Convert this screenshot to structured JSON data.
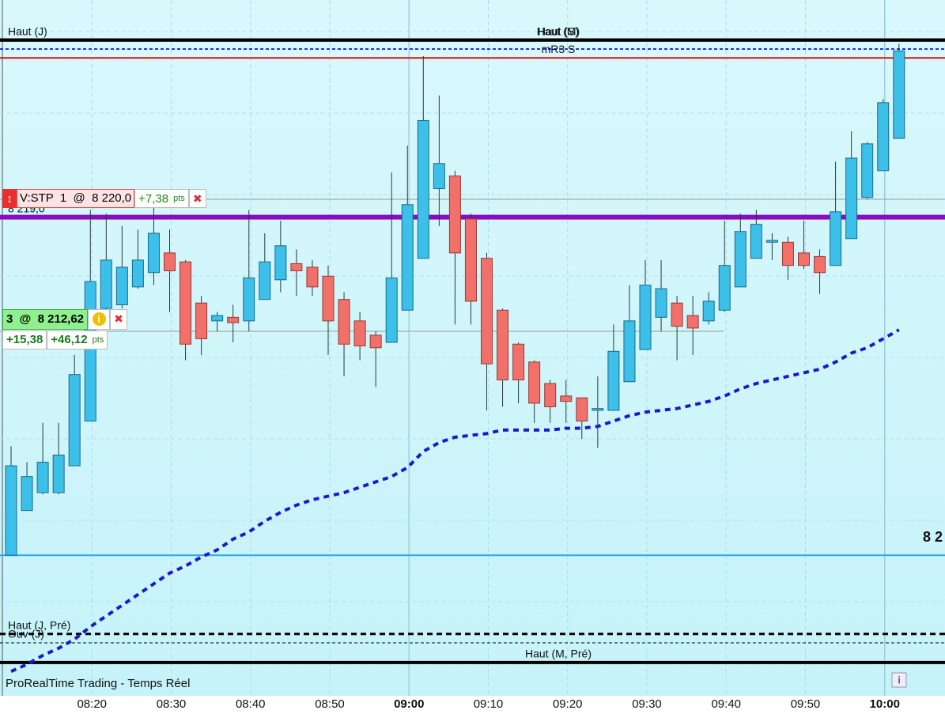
{
  "chart_data": {
    "type": "candlestick",
    "categories": [
      null,
      null,
      null,
      null,
      null,
      "08:20",
      null,
      null,
      null,
      null,
      "08:30",
      null,
      null,
      null,
      null,
      "08:40",
      null,
      null,
      null,
      null,
      "08:50",
      null,
      null,
      null,
      null,
      "09:00",
      null,
      null,
      null,
      null,
      "09:10",
      null,
      null,
      null,
      null,
      "09:20",
      null,
      null,
      null,
      null,
      "09:30",
      null,
      null,
      null,
      null,
      "09:40",
      null,
      null,
      null,
      null,
      "09:50",
      null,
      null,
      null,
      null,
      "10:00",
      null
    ],
    "open": [
      8200.1,
      8202.6,
      8203.6,
      8203.6,
      8205.1,
      8207.6,
      8213.9,
      8214.1,
      8215.1,
      8215.9,
      8217.0,
      8216.5,
      8214.2,
      8213.2,
      8213.4,
      8213.2,
      8214.4,
      8215.5,
      8216.4,
      8216.2,
      8215.7,
      8214.4,
      8213.2,
      8212.4,
      8212.0,
      8213.8,
      8216.7,
      8220.6,
      8221.3,
      8218.9,
      8216.7,
      8213.8,
      8211.9,
      8210.9,
      8209.7,
      8209.0,
      8208.9,
      8208.2,
      8208.2,
      8209.8,
      8211.6,
      8213.4,
      8214.2,
      8213.5,
      8213.2,
      8213.8,
      8215.1,
      8216.7,
      8217.6,
      8217.6,
      8217.0,
      8216.8,
      8216.3,
      8217.8,
      8220.1,
      8221.6,
      8223.4
    ],
    "high": [
      8206.2,
      8205.3,
      8207.5,
      8207.5,
      8211.3,
      8219.4,
      8219.2,
      8218.5,
      8218.3,
      8219.9,
      8218.3,
      8216.6,
      8214.6,
      8213.7,
      8214.1,
      8219.4,
      8218.1,
      8218.8,
      8217.2,
      8216.6,
      8216.3,
      8214.8,
      8213.7,
      8212.6,
      8221.5,
      8223.0,
      8228.0,
      8225.8,
      8221.6,
      8219.2,
      8217.0,
      8213.9,
      8212.0,
      8211.0,
      8209.9,
      8209.9,
      8208.9,
      8210.1,
      8213.0,
      8215.2,
      8216.6,
      8216.6,
      8214.6,
      8214.6,
      8214.8,
      8218.8,
      8219.2,
      8219.4,
      8218.1,
      8217.9,
      8218.8,
      8217.2,
      8222.1,
      8223.8,
      8223.2,
      8225.6,
      8228.7
    ],
    "low": [
      8200.1,
      8202.6,
      8203.5,
      8203.5,
      8205.1,
      8207.6,
      8213.7,
      8213.9,
      8215.0,
      8215.2,
      8213.7,
      8211.0,
      8211.3,
      8212.6,
      8212.0,
      8212.6,
      8214.4,
      8214.8,
      8214.6,
      8214.6,
      8211.3,
      8210.1,
      8211.0,
      8209.5,
      8212.0,
      8213.8,
      8216.7,
      8218.5,
      8213.0,
      8213.0,
      8208.2,
      8208.4,
      8208.6,
      8207.5,
      8207.5,
      8207.5,
      8206.6,
      8206.1,
      8208.2,
      8209.8,
      8211.6,
      8212.6,
      8211.0,
      8211.3,
      8213.0,
      8213.7,
      8215.1,
      8216.7,
      8216.6,
      8215.5,
      8216.1,
      8214.7,
      8216.3,
      8217.8,
      8220.0,
      8221.6,
      8223.4
    ],
    "close": [
      8205.1,
      8204.5,
      8205.3,
      8205.7,
      8210.2,
      8215.4,
      8216.6,
      8216.2,
      8216.6,
      8218.1,
      8216.0,
      8211.9,
      8212.2,
      8213.5,
      8213.1,
      8215.6,
      8216.5,
      8217.4,
      8216.0,
      8215.1,
      8213.2,
      8211.9,
      8211.8,
      8211.7,
      8215.6,
      8219.7,
      8224.4,
      8222.0,
      8217.0,
      8214.3,
      8210.8,
      8209.9,
      8209.9,
      8208.6,
      8208.4,
      8208.7,
      8207.6,
      8208.3,
      8211.5,
      8213.2,
      8215.2,
      8215.0,
      8212.9,
      8212.8,
      8214.3,
      8216.3,
      8218.2,
      8218.6,
      8217.7,
      8216.3,
      8216.3,
      8215.9,
      8219.3,
      8222.3,
      8223.1,
      8225.4,
      8228.3
    ],
    "up_color": "#3cc0ea",
    "down_color": "#f2706a",
    "ma": {
      "color": "#1a1acc",
      "values": [
        8193.6,
        8194.0,
        8194.5,
        8194.9,
        8195.4,
        8196.1,
        8196.7,
        8197.3,
        8197.9,
        8198.5,
        8199.1,
        8199.5,
        8200.0,
        8200.4,
        8201.0,
        8201.4,
        8202.0,
        8202.5,
        8202.9,
        8203.2,
        8203.4,
        8203.6,
        8203.9,
        8204.2,
        8204.5,
        8205.0,
        8205.9,
        8206.4,
        8206.7,
        8206.8,
        8206.9,
        8207.1,
        8207.1,
        8207.1,
        8207.1,
        8207.2,
        8207.2,
        8207.3,
        8207.6,
        8207.9,
        8208.1,
        8208.2,
        8208.3,
        8208.5,
        8208.7,
        8209.0,
        8209.4,
        8209.7,
        8209.9,
        8210.1,
        8210.3,
        8210.5,
        8210.9,
        8211.4,
        8211.7,
        8212.2,
        8212.7
      ]
    },
    "ylim": [
      8192.24,
      8231.14
    ],
    "levels": [
      {
        "label": "Haut (J)",
        "value": 8228.9,
        "color": "#000000",
        "width": 4,
        "style": "solid",
        "label_pos": "left"
      },
      {
        "label": "Haut (S)",
        "value": 8228.9,
        "color": "#000000",
        "width": 4,
        "style": "solid",
        "label_pos": "center"
      },
      {
        "label": "Haut (M)",
        "value": 8228.9,
        "color": "#000000",
        "width": 4,
        "style": "solid",
        "label_pos": "center"
      },
      {
        "value": 8228.4,
        "color": "#2233dd",
        "width": 2,
        "style": "dashed"
      },
      {
        "label": "mR3 S",
        "value": 8227.9,
        "color": "#e01010",
        "width": 2,
        "style": "solid",
        "label_pos": "center"
      },
      {
        "label": "8 219,0",
        "value": 8219.0,
        "color": "#8a0cc0",
        "width": 6,
        "style": "solid",
        "label_pos": "left"
      },
      {
        "label": "8 2",
        "value": 8200.1,
        "color": "#22aaee",
        "width": 2,
        "style": "solid",
        "label_pos": "right"
      },
      {
        "label": "Haut (J, Pré)",
        "value": 8195.7,
        "color": "#000000",
        "width": 3,
        "style": "dashed",
        "label_pos": "left"
      },
      {
        "label": "Ouv (J)",
        "value": 8195.2,
        "color": "#000000",
        "width": 1,
        "style": "dashed",
        "label_pos": "left"
      },
      {
        "label": "Haut (M, Pré)",
        "value": 8194.1,
        "color": "#000000",
        "width": 4,
        "style": "solid",
        "label_pos": "center"
      }
    ],
    "order": {
      "label": "V:STP  1  @  8 220,0",
      "value": 8220.0,
      "pnl": "+7,38",
      "unit": "pts"
    },
    "position": {
      "label": "3  @  8 212,62",
      "value": 8212.62,
      "pnl": [
        "+15,38",
        "+46,12"
      ],
      "unit": "pts"
    },
    "footer": "ProRealTime Trading - Temps Réel"
  }
}
